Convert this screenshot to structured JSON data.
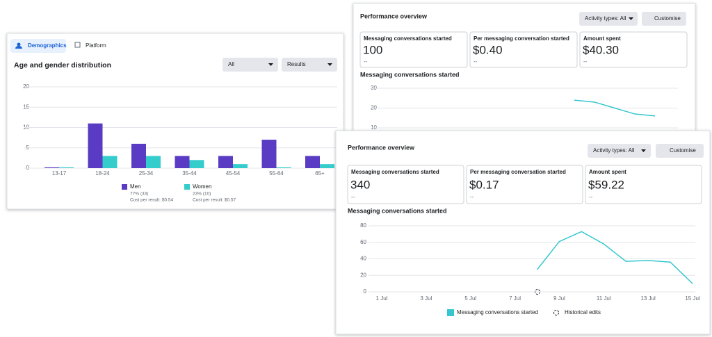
{
  "demographics": {
    "tabs": [
      "Demographics",
      "Platform"
    ],
    "title": "Age and gender distribution",
    "filters": [
      "All",
      "Results"
    ]
  },
  "overview_back": {
    "title": "Performance overview",
    "activity": "Activity types: All",
    "customise": "Customise",
    "metrics": [
      {
        "label": "Messaging conversations started",
        "value": "100",
        "delta": "--"
      },
      {
        "label": "Per messaging conversation started",
        "value": "$0.40",
        "delta": "--"
      },
      {
        "label": "Amount spent",
        "value": "$40.30",
        "delta": "--"
      }
    ]
  },
  "overview_front": {
    "title": "Performance overview",
    "activity": "Activity types: All",
    "customise": "Customise",
    "metrics": [
      {
        "label": "Messaging conversations started",
        "value": "340",
        "delta": "--"
      },
      {
        "label": "Per messaging conversation started",
        "value": "$0.17",
        "delta": "--"
      },
      {
        "label": "Amount spent",
        "value": "$59.22",
        "delta": "--"
      }
    ],
    "legend_extra": "Historical edits"
  },
  "chart_data": [
    {
      "type": "bar",
      "categories": [
        "13-17",
        "18-24",
        "25-34",
        "35-44",
        "45-54",
        "55-64",
        "65+"
      ],
      "series": [
        {
          "name": "Men",
          "color": "#5a3bc3",
          "values": [
            0.2,
            11,
            6,
            3,
            3,
            7,
            3
          ],
          "detail": "77% (33)",
          "cost": "Cost per result: $0.54"
        },
        {
          "name": "Women",
          "color": "#35cccc",
          "values": [
            0.2,
            3,
            3,
            2,
            1,
            0.2,
            1
          ],
          "detail": "23% (10)",
          "cost": "Cost per result: $0.57"
        }
      ],
      "ylim": [
        0,
        20
      ],
      "yticks": [
        0,
        5,
        10,
        15,
        20
      ],
      "grid": true
    },
    {
      "type": "line",
      "title": "Messaging conversations started",
      "categories": [
        null,
        null,
        null,
        null,
        null,
        null,
        null,
        null,
        null,
        null,
        null,
        null,
        null,
        null,
        null
      ],
      "values": [
        null,
        null,
        null,
        null,
        null,
        null,
        null,
        null,
        null,
        null,
        24,
        23,
        20,
        17,
        16
      ],
      "color": "#35c6cf",
      "ylim": [
        0,
        35
      ],
      "yticks": [
        10,
        20,
        30
      ],
      "grid": true
    },
    {
      "type": "line",
      "title": "Messaging conversations started",
      "categories": [
        "1 Jul",
        null,
        "3 Jul",
        null,
        "5 Jul",
        null,
        "7 Jul",
        null,
        "9 Jul",
        null,
        "11 Jul",
        null,
        "13 Jul",
        null,
        "15 Jul"
      ],
      "series": [
        {
          "name": "Messaging conversations started",
          "color": "#35c6cf",
          "values": [
            null,
            null,
            null,
            null,
            null,
            null,
            null,
            27,
            61,
            73,
            58,
            37,
            38,
            36,
            10
          ]
        }
      ],
      "ylim": [
        0,
        80
      ],
      "yticks": [
        0,
        20,
        40,
        60,
        80
      ],
      "grid": true
    }
  ]
}
